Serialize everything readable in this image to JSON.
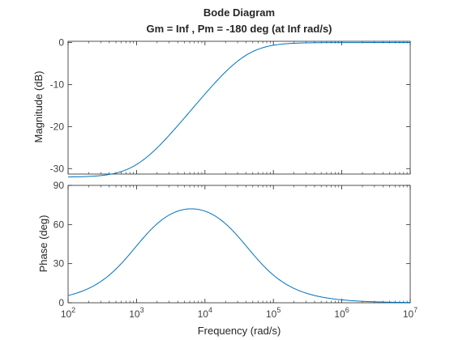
{
  "chart_data": {
    "type": "line",
    "title": "Bode Diagram",
    "subtitle": "Gm = Inf ,  Pm = -180 deg (at Inf rad/s)",
    "xlabel": "Frequency  (rad/s)",
    "xscale": "log",
    "xlim": [
      100,
      10000000
    ],
    "xticks": [
      {
        "base": "10",
        "exp": "2"
      },
      {
        "base": "10",
        "exp": "3"
      },
      {
        "base": "10",
        "exp": "4"
      },
      {
        "base": "10",
        "exp": "5"
      },
      {
        "base": "10",
        "exp": "6"
      },
      {
        "base": "10",
        "exp": "7"
      }
    ],
    "line_color": "#0072BD",
    "grid": false,
    "panels": [
      {
        "name": "magnitude",
        "ylabel": "Magnitude (dB)",
        "ylim": [
          -31.3,
          0.3
        ],
        "yticks": [
          "0",
          "-10",
          "-20",
          "-30"
        ],
        "ytick_values": [
          0,
          -10,
          -20,
          -30
        ],
        "model": {
          "z": 1000,
          "p": 40000,
          "high_gain_db": 0
        }
      },
      {
        "name": "phase",
        "ylabel": "Phase (deg)",
        "ylim": [
          0,
          90
        ],
        "yticks": [
          "0",
          "30",
          "60",
          "90"
        ],
        "ytick_values": [
          0,
          30,
          60,
          90
        ],
        "model": {
          "z": 1000,
          "p": 40000
        }
      }
    ]
  }
}
